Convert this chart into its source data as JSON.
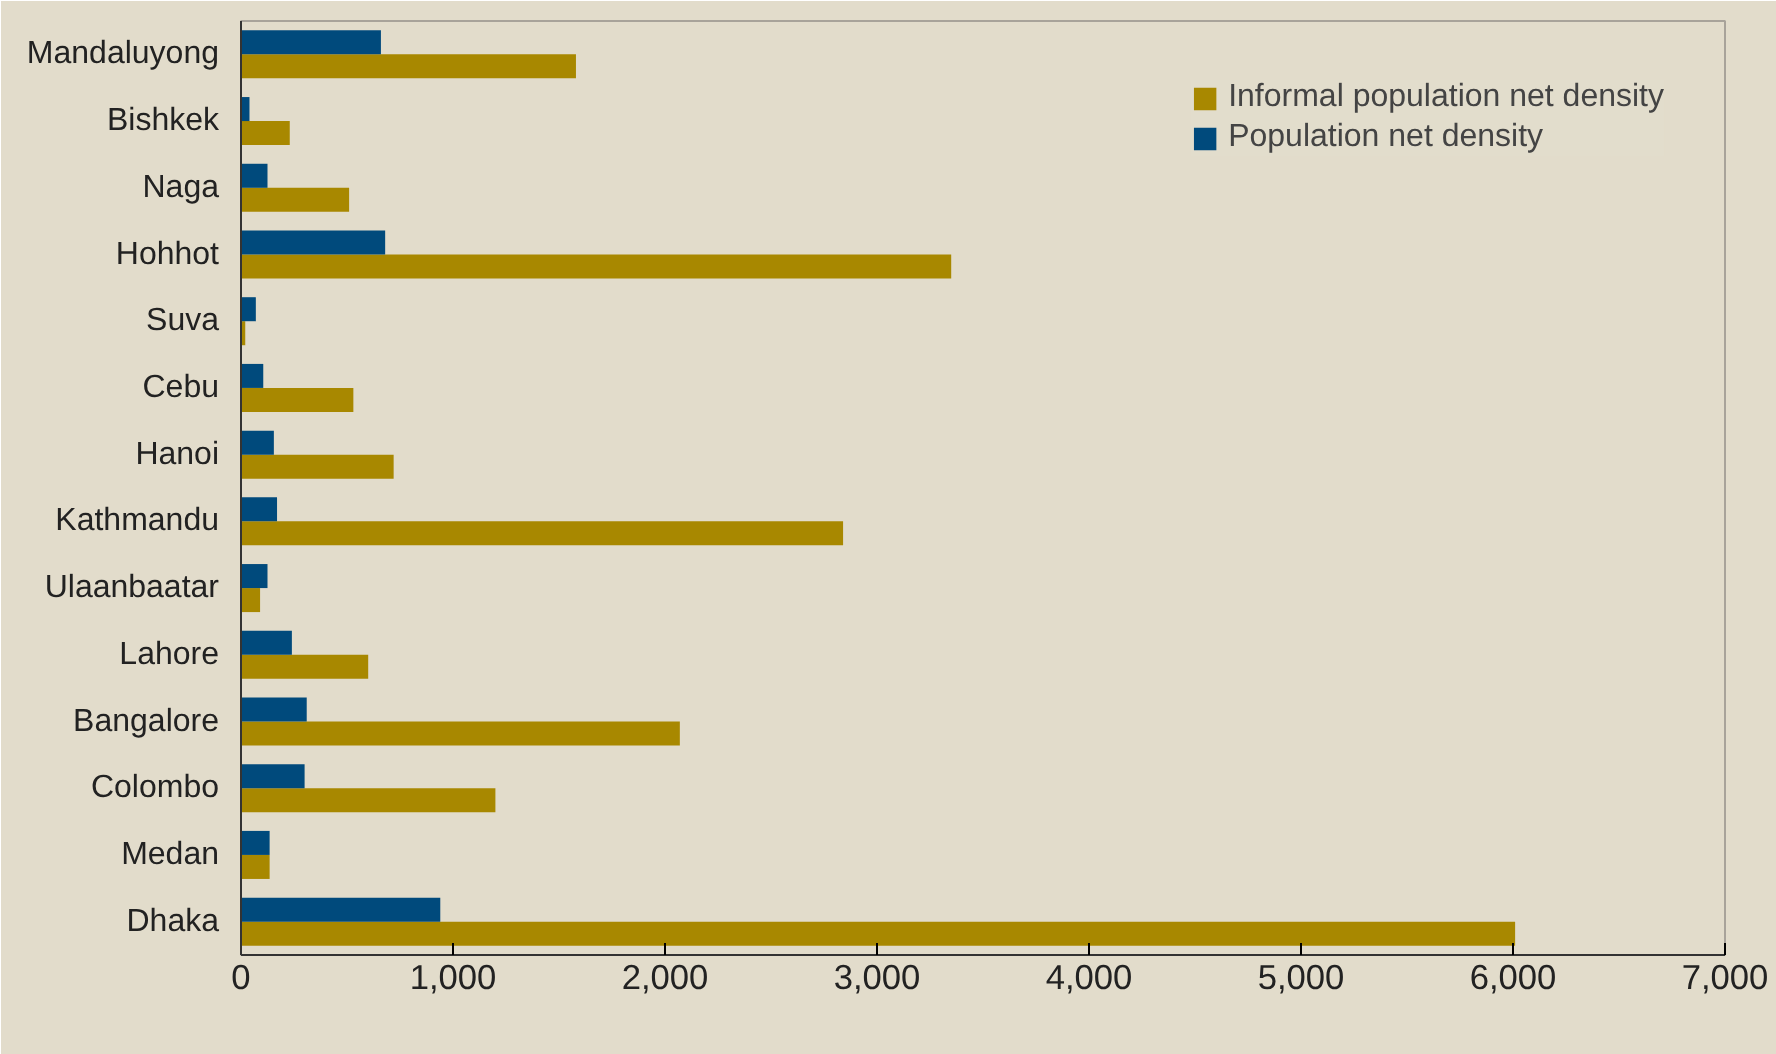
{
  "chart_data": {
    "type": "bar",
    "orientation": "horizontal",
    "categories": [
      "Mandaluyong",
      "Bishkek",
      "Naga",
      "Hohhot",
      "Suva",
      "Cebu",
      "Hanoi",
      "Kathmandu",
      "Ulaanbaatar",
      "Lahore",
      "Bangalore",
      "Colombo",
      "Medan",
      "Dhaka"
    ],
    "series": [
      {
        "name": "Informal population net density",
        "color": "#a88800",
        "values": [
          1580,
          230,
          510,
          3350,
          20,
          530,
          720,
          2840,
          90,
          600,
          2070,
          1200,
          135,
          6010
        ]
      },
      {
        "name": "Population net density",
        "color": "#004a7c",
        "values": [
          660,
          40,
          125,
          680,
          70,
          105,
          155,
          170,
          125,
          240,
          310,
          300,
          135,
          940
        ]
      }
    ],
    "xlim": [
      0,
      7000
    ],
    "xticks": [
      0,
      {
        "value": 1000,
        "label": "1,000"
      },
      {
        "value": 2000,
        "label": "2,000"
      },
      {
        "value": 3000,
        "label": "3,000"
      },
      {
        "value": 4000,
        "label": "4,000"
      },
      {
        "value": 5000,
        "label": "5,000"
      },
      {
        "value": 6000,
        "label": "6,000"
      },
      {
        "value": 7000,
        "label": "7,000"
      }
    ],
    "grid": false,
    "legend": "top right"
  }
}
